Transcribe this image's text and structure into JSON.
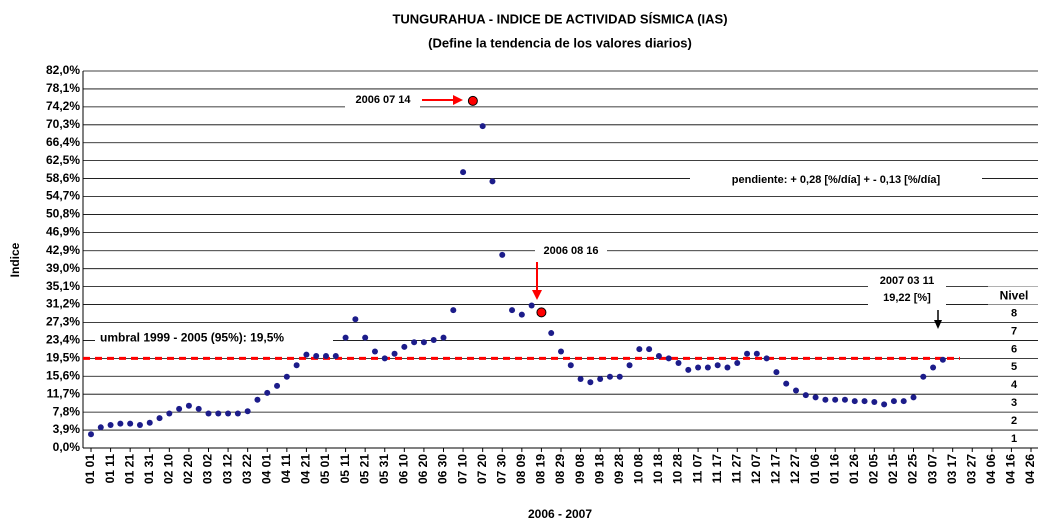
{
  "chart_data": {
    "type": "scatter",
    "title": "TUNGURAHUA - INDICE DE ACTIVIDAD SÍSMICA (IAS)",
    "subtitle": "(Define la tendencia de los valores diarios)",
    "y_label": "Indice",
    "x_label": "2006 - 2007",
    "color": "#1c1c8a",
    "categories": [
      "01 01",
      null,
      "01 11",
      null,
      "01 21",
      null,
      "01 31",
      null,
      "02 10",
      null,
      "02 20",
      null,
      "03 02",
      null,
      "03 12",
      null,
      "03 22",
      null,
      "04 01",
      null,
      "04 11",
      null,
      "04 21",
      null,
      "05 01",
      null,
      "05 11",
      null,
      "05 21",
      null,
      "05 31",
      null,
      "06 10",
      null,
      "06 20",
      null,
      "06 30",
      null,
      "07 10",
      null,
      "07 20",
      null,
      "07 30",
      null,
      "08 09",
      null,
      "08 19",
      null,
      "08 29",
      null,
      "09 08",
      null,
      "09 18",
      null,
      "09 28",
      null,
      "10 08",
      null,
      "10 18",
      null,
      "10 28",
      null,
      "11 07",
      null,
      "11 17",
      null,
      "11 27",
      null,
      "12 07",
      null,
      "12 17",
      null,
      "12 27",
      null,
      "01 06",
      null,
      "01 16",
      null,
      "01 26",
      null,
      "02 05",
      null,
      "02 15",
      null,
      "02 25",
      null,
      "03 07",
      null,
      "03 17",
      null,
      "03 27",
      null,
      "04 06",
      null,
      "04 16",
      null,
      "04 26"
    ],
    "values": [
      3.0,
      4.5,
      5.0,
      5.3,
      5.3,
      5.0,
      5.5,
      6.5,
      7.5,
      8.5,
      9.2,
      8.5,
      7.5,
      7.5,
      7.5,
      7.5,
      8.0,
      10.5,
      12,
      13.5,
      15.5,
      18,
      20.3,
      20,
      20,
      20,
      24,
      28,
      24,
      21,
      19.5,
      20.5,
      22,
      23,
      23,
      23.5,
      24,
      30,
      60,
      75.5,
      70,
      58,
      42,
      30,
      29,
      31,
      29.5,
      25,
      21,
      18,
      15,
      14.3,
      15,
      15.5,
      15.5,
      18,
      21.5,
      21.5,
      20,
      19.5,
      18.5,
      17,
      17.5,
      17.5,
      18,
      17.5,
      18.5,
      20.5,
      20.5,
      19.5,
      16.5,
      14,
      12.5,
      11.5,
      11,
      10.5,
      10.5,
      10.5,
      10.2,
      10.2,
      10,
      9.5,
      10.2,
      10.2,
      11,
      15.5,
      17.5,
      19.2,
      null,
      null,
      null,
      null,
      null,
      null,
      null,
      null,
      null
    ],
    "ylim": [
      0,
      82
    ],
    "yticks": [
      {
        "value": 0,
        "label": "0,0%"
      },
      {
        "value": 3.9,
        "label": "3,9%"
      },
      {
        "value": 7.8,
        "label": "7,8%"
      },
      {
        "value": 11.7,
        "label": "11,7%"
      },
      {
        "value": 15.6,
        "label": "15,6%"
      },
      {
        "value": 19.5,
        "label": "19,5%"
      },
      {
        "value": 23.4,
        "label": "23,4%"
      },
      {
        "value": 27.3,
        "label": "27,3%"
      },
      {
        "value": 31.2,
        "label": "31,2%"
      },
      {
        "value": 35.1,
        "label": "35,1%"
      },
      {
        "value": 39.0,
        "label": "39,0%"
      },
      {
        "value": 42.9,
        "label": "42,9%"
      },
      {
        "value": 46.9,
        "label": "46,9%"
      },
      {
        "value": 50.8,
        "label": "50,8%"
      },
      {
        "value": 54.7,
        "label": "54,7%"
      },
      {
        "value": 58.6,
        "label": "58,6%"
      },
      {
        "value": 62.5,
        "label": "62,5%"
      },
      {
        "value": 66.4,
        "label": "66,4%"
      },
      {
        "value": 70.3,
        "label": "70,3%"
      },
      {
        "value": 74.2,
        "label": "74,2%"
      },
      {
        "value": 78.1,
        "label": "78,1%"
      },
      {
        "value": 82.0,
        "label": "82,0%"
      }
    ],
    "grid": true,
    "threshold": {
      "value": 19.5,
      "label": "umbral 1999 - 2005 (95%):  19,5%",
      "color": "#ff0000"
    },
    "annotations": [
      "2006 07 14",
      "2006 08 16",
      "2007 03 11",
      "19,22 [%]",
      "pendiente: + 0,28 [%/día] + - 0,13 [%/día]"
    ],
    "highlight_color": "#ff0000",
    "levels_title": "Nivel",
    "levels": [
      1,
      2,
      3,
      4,
      5,
      6,
      7,
      8
    ]
  }
}
